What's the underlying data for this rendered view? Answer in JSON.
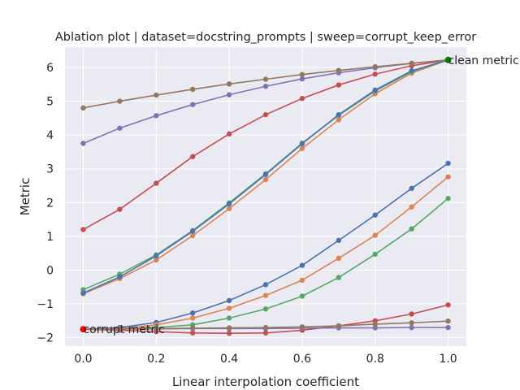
{
  "chart_data": {
    "type": "line",
    "title": "Ablation plot | dataset=docstring_prompts | sweep=corrupt_keep_error",
    "xlabel": "Linear interpolation coefficient",
    "ylabel": "Metric",
    "xlim": [
      -0.05,
      1.05
    ],
    "ylim": [
      -2.25,
      6.6
    ],
    "xticks": [
      "0.0",
      "0.2",
      "0.4",
      "0.6",
      "0.8",
      "1.0"
    ],
    "yticks": [
      "−2",
      "−1",
      "0",
      "1",
      "2",
      "3",
      "4",
      "5",
      "6"
    ],
    "grid": true,
    "x": [
      0.0,
      0.1,
      0.2,
      0.3,
      0.4,
      0.5,
      0.6,
      0.7,
      0.8,
      0.9,
      1.0
    ],
    "series": [
      {
        "color": "#4c72b0",
        "values": [
          -1.75,
          -1.7,
          -1.55,
          -1.27,
          -0.9,
          -0.43,
          0.14,
          0.88,
          1.63,
          2.42,
          3.16
        ]
      },
      {
        "color": "#dd8452",
        "values": [
          -1.75,
          -1.73,
          -1.62,
          -1.42,
          -1.13,
          -0.75,
          -0.3,
          0.35,
          1.03,
          1.87,
          2.76
        ]
      },
      {
        "color": "#55a868",
        "values": [
          -1.75,
          -1.75,
          -1.7,
          -1.62,
          -1.42,
          -1.15,
          -0.77,
          -0.22,
          0.47,
          1.22,
          2.12
        ]
      },
      {
        "color": "#c44e52",
        "values": [
          -1.75,
          -1.78,
          -1.82,
          -1.86,
          -1.87,
          -1.86,
          -1.78,
          -1.65,
          -1.5,
          -1.3,
          -1.03
        ]
      },
      {
        "color": "#8172b3",
        "values": [
          -1.75,
          -1.75,
          -1.74,
          -1.73,
          -1.73,
          -1.73,
          -1.72,
          -1.71,
          -1.71,
          -1.7,
          -1.7
        ]
      },
      {
        "color": "#937860",
        "values": [
          -1.75,
          -1.74,
          -1.73,
          -1.72,
          -1.71,
          -1.7,
          -1.68,
          -1.65,
          -1.6,
          -1.56,
          -1.51
        ]
      },
      {
        "color": "#dd8452",
        "values": [
          -0.7,
          -0.25,
          0.3,
          1.02,
          1.82,
          2.68,
          3.6,
          4.45,
          5.22,
          5.83,
          6.22
        ]
      },
      {
        "color": "#55a868",
        "values": [
          -0.58,
          -0.12,
          0.45,
          1.17,
          1.99,
          2.85,
          3.76,
          4.58,
          5.3,
          5.87,
          6.22
        ]
      },
      {
        "color": "#4c72b0",
        "values": [
          -0.68,
          -0.2,
          0.42,
          1.15,
          1.96,
          2.83,
          3.74,
          4.6,
          5.33,
          5.9,
          6.22
        ]
      },
      {
        "color": "#c44e52",
        "values": [
          1.2,
          1.8,
          2.57,
          3.36,
          4.03,
          4.6,
          5.08,
          5.48,
          5.8,
          6.05,
          6.22
        ]
      },
      {
        "color": "#8172b3",
        "values": [
          3.75,
          4.2,
          4.57,
          4.9,
          5.19,
          5.44,
          5.66,
          5.84,
          5.99,
          6.12,
          6.22
        ]
      },
      {
        "color": "#937860",
        "values": [
          4.8,
          5.0,
          5.18,
          5.35,
          5.51,
          5.65,
          5.79,
          5.91,
          6.02,
          6.12,
          6.22
        ]
      }
    ],
    "annotations": [
      {
        "text": "clean metric",
        "x": 1.0,
        "y": 6.22,
        "marker_color": "#008000"
      },
      {
        "text": "corrupt metric",
        "x": 0.0,
        "y": -1.75,
        "marker_color": "#ff0000"
      }
    ]
  }
}
